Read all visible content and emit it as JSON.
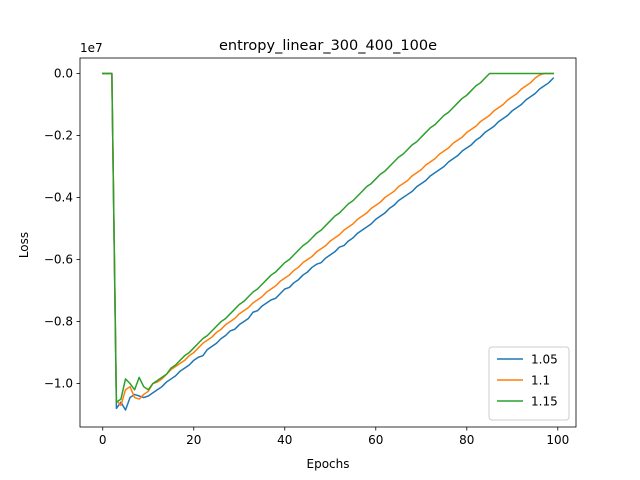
{
  "chart_data": {
    "type": "line",
    "title": "entropy_linear_300_400_100e",
    "xlabel": "Epochs",
    "ylabel": "Loss",
    "y_offset_text": "1e7",
    "xlim": [
      -5,
      104
    ],
    "ylim": [
      -1.14,
      0.05
    ],
    "x_ticks": [
      0,
      20,
      40,
      60,
      80,
      100
    ],
    "x_tick_labels": [
      "0",
      "20",
      "40",
      "60",
      "80",
      "100"
    ],
    "y_ticks": [
      0.0,
      -0.2,
      -0.4,
      -0.6,
      -0.8,
      -1.0
    ],
    "y_tick_labels": [
      "0.0",
      "−0.2",
      "−0.4",
      "−0.6",
      "−0.8",
      "−1.0"
    ],
    "legend_location": "lower right",
    "series": [
      {
        "name": "1.05",
        "color": "#1f77b4",
        "x": [
          0,
          1,
          2,
          3,
          4,
          5,
          6,
          7,
          8,
          9,
          10,
          11,
          12,
          13,
          14,
          15,
          16,
          17,
          18,
          19,
          20,
          21,
          22,
          23,
          24,
          25,
          26,
          27,
          28,
          29,
          30,
          31,
          32,
          33,
          34,
          35,
          36,
          37,
          38,
          39,
          40,
          41,
          42,
          43,
          44,
          45,
          46,
          47,
          48,
          49,
          50,
          51,
          52,
          53,
          54,
          55,
          56,
          57,
          58,
          59,
          60,
          61,
          62,
          63,
          64,
          65,
          66,
          67,
          68,
          69,
          70,
          71,
          72,
          73,
          74,
          75,
          76,
          77,
          78,
          79,
          80,
          81,
          82,
          83,
          84,
          85,
          86,
          87,
          88,
          89,
          90,
          91,
          92,
          93,
          94,
          95,
          96,
          97,
          98,
          99
        ],
        "y": [
          0.0,
          0.0,
          0.0,
          -1.08,
          -1.06,
          -1.085,
          -1.045,
          -1.035,
          -1.04,
          -1.045,
          -1.04,
          -1.03,
          -1.02,
          -1.01,
          -0.995,
          -0.985,
          -0.975,
          -0.96,
          -0.95,
          -0.94,
          -0.925,
          -0.915,
          -0.91,
          -0.89,
          -0.88,
          -0.87,
          -0.855,
          -0.845,
          -0.83,
          -0.825,
          -0.81,
          -0.8,
          -0.79,
          -0.77,
          -0.765,
          -0.75,
          -0.74,
          -0.73,
          -0.725,
          -0.71,
          -0.695,
          -0.69,
          -0.675,
          -0.665,
          -0.65,
          -0.64,
          -0.625,
          -0.615,
          -0.61,
          -0.595,
          -0.585,
          -0.575,
          -0.56,
          -0.555,
          -0.54,
          -0.53,
          -0.515,
          -0.505,
          -0.495,
          -0.485,
          -0.47,
          -0.46,
          -0.45,
          -0.435,
          -0.425,
          -0.41,
          -0.4,
          -0.39,
          -0.38,
          -0.365,
          -0.355,
          -0.345,
          -0.33,
          -0.32,
          -0.31,
          -0.3,
          -0.285,
          -0.275,
          -0.265,
          -0.25,
          -0.24,
          -0.23,
          -0.215,
          -0.205,
          -0.19,
          -0.18,
          -0.17,
          -0.155,
          -0.145,
          -0.135,
          -0.12,
          -0.11,
          -0.1,
          -0.085,
          -0.075,
          -0.065,
          -0.05,
          -0.04,
          -0.03,
          -0.015
        ]
      },
      {
        "name": "1.1",
        "color": "#ff7f0e",
        "x": [
          0,
          1,
          2,
          3,
          4,
          5,
          6,
          7,
          8,
          9,
          10,
          11,
          12,
          13,
          14,
          15,
          16,
          17,
          18,
          19,
          20,
          21,
          22,
          23,
          24,
          25,
          26,
          27,
          28,
          29,
          30,
          31,
          32,
          33,
          34,
          35,
          36,
          37,
          38,
          39,
          40,
          41,
          42,
          43,
          44,
          45,
          46,
          47,
          48,
          49,
          50,
          51,
          52,
          53,
          54,
          55,
          56,
          57,
          58,
          59,
          60,
          61,
          62,
          63,
          64,
          65,
          66,
          67,
          68,
          69,
          70,
          71,
          72,
          73,
          74,
          75,
          76,
          77,
          78,
          79,
          80,
          81,
          82,
          83,
          84,
          85,
          86,
          87,
          88,
          89,
          90,
          91,
          92,
          93,
          94,
          95,
          96,
          97,
          98,
          99
        ],
        "y": [
          0.0,
          0.0,
          0.0,
          -1.055,
          -1.07,
          -1.02,
          -1.01,
          -1.045,
          -1.05,
          -1.035,
          -1.025,
          -1.0,
          -0.995,
          -0.985,
          -0.97,
          -0.955,
          -0.945,
          -0.935,
          -0.925,
          -0.91,
          -0.9,
          -0.885,
          -0.87,
          -0.86,
          -0.85,
          -0.835,
          -0.825,
          -0.81,
          -0.8,
          -0.79,
          -0.775,
          -0.765,
          -0.755,
          -0.74,
          -0.73,
          -0.72,
          -0.705,
          -0.695,
          -0.685,
          -0.67,
          -0.66,
          -0.65,
          -0.635,
          -0.625,
          -0.61,
          -0.6,
          -0.59,
          -0.575,
          -0.565,
          -0.555,
          -0.54,
          -0.53,
          -0.52,
          -0.505,
          -0.495,
          -0.485,
          -0.47,
          -0.46,
          -0.45,
          -0.435,
          -0.425,
          -0.415,
          -0.4,
          -0.39,
          -0.38,
          -0.365,
          -0.355,
          -0.345,
          -0.33,
          -0.32,
          -0.31,
          -0.295,
          -0.285,
          -0.275,
          -0.26,
          -0.25,
          -0.24,
          -0.225,
          -0.215,
          -0.205,
          -0.19,
          -0.18,
          -0.17,
          -0.155,
          -0.145,
          -0.135,
          -0.12,
          -0.11,
          -0.1,
          -0.085,
          -0.075,
          -0.065,
          -0.05,
          -0.04,
          -0.03,
          -0.015,
          -0.005,
          0.0,
          0.0,
          0.0
        ]
      },
      {
        "name": "1.15",
        "color": "#2ca02c",
        "x": [
          0,
          1,
          2,
          3,
          4,
          5,
          6,
          7,
          8,
          9,
          10,
          11,
          12,
          13,
          14,
          15,
          16,
          17,
          18,
          19,
          20,
          21,
          22,
          23,
          24,
          25,
          26,
          27,
          28,
          29,
          30,
          31,
          32,
          33,
          34,
          35,
          36,
          37,
          38,
          39,
          40,
          41,
          42,
          43,
          44,
          45,
          46,
          47,
          48,
          49,
          50,
          51,
          52,
          53,
          54,
          55,
          56,
          57,
          58,
          59,
          60,
          61,
          62,
          63,
          64,
          65,
          66,
          67,
          68,
          69,
          70,
          71,
          72,
          73,
          74,
          75,
          76,
          77,
          78,
          79,
          80,
          81,
          82,
          83,
          84,
          85,
          86,
          87,
          88,
          89,
          90,
          91,
          92,
          93,
          94,
          95,
          96,
          97,
          98,
          99
        ],
        "y": [
          0.0,
          0.0,
          0.0,
          -1.06,
          -1.05,
          -0.985,
          -1.0,
          -1.02,
          -0.98,
          -1.01,
          -1.02,
          -1.0,
          -0.99,
          -0.98,
          -0.97,
          -0.95,
          -0.94,
          -0.925,
          -0.91,
          -0.9,
          -0.885,
          -0.87,
          -0.855,
          -0.845,
          -0.83,
          -0.815,
          -0.8,
          -0.79,
          -0.775,
          -0.76,
          -0.745,
          -0.735,
          -0.72,
          -0.705,
          -0.695,
          -0.68,
          -0.665,
          -0.65,
          -0.64,
          -0.625,
          -0.61,
          -0.6,
          -0.585,
          -0.57,
          -0.555,
          -0.545,
          -0.53,
          -0.515,
          -0.505,
          -0.49,
          -0.475,
          -0.46,
          -0.45,
          -0.435,
          -0.42,
          -0.41,
          -0.395,
          -0.38,
          -0.365,
          -0.355,
          -0.34,
          -0.325,
          -0.315,
          -0.3,
          -0.285,
          -0.27,
          -0.26,
          -0.245,
          -0.23,
          -0.22,
          -0.205,
          -0.19,
          -0.175,
          -0.165,
          -0.15,
          -0.135,
          -0.125,
          -0.11,
          -0.095,
          -0.08,
          -0.07,
          -0.055,
          -0.04,
          -0.03,
          -0.015,
          0.0,
          0.0,
          0.0,
          0.0,
          0.0,
          0.0,
          0.0,
          0.0,
          0.0,
          0.0,
          0.0,
          0.0,
          0.0,
          0.0,
          0.0
        ]
      }
    ]
  }
}
